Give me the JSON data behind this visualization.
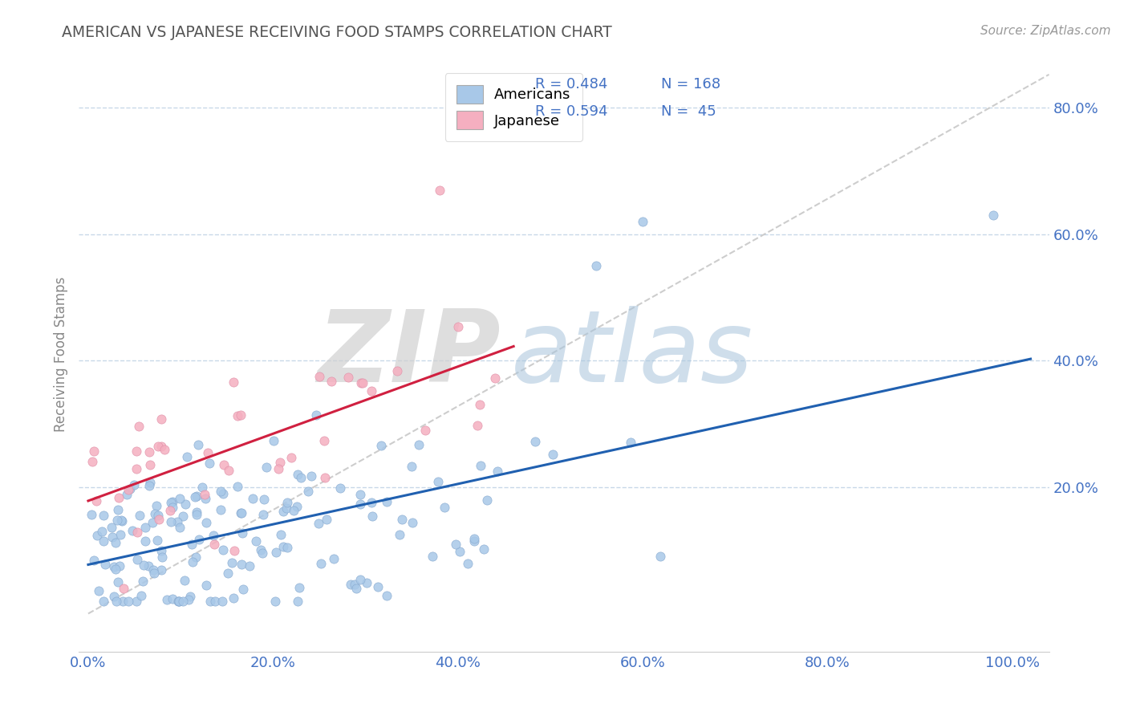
{
  "title": "AMERICAN VS JAPANESE RECEIVING FOOD STAMPS CORRELATION CHART",
  "source": "Source: ZipAtlas.com",
  "ylabel": "Receiving Food Stamps",
  "americans_color": "#a8c8e8",
  "americans_edge": "#88aad0",
  "japanese_color": "#f5afc0",
  "japanese_edge": "#e090a8",
  "trend_american_color": "#2060b0",
  "trend_japanese_color": "#d02040",
  "diagonal_color": "#c8c8c8",
  "legend_american_label": "Americans",
  "legend_japanese_label": "Japanese",
  "R_american": "0.484",
  "N_american": "168",
  "R_japanese": "0.594",
  "N_japanese": " 45",
  "background_color": "#ffffff",
  "title_color": "#555555",
  "watermark_zip_color": "#cccccc",
  "watermark_atlas_color": "#aac0d8",
  "grid_color": "#c8d8e8",
  "tick_color": "#4472c4",
  "source_color": "#999999",
  "legend_text_color": "#4472c4"
}
